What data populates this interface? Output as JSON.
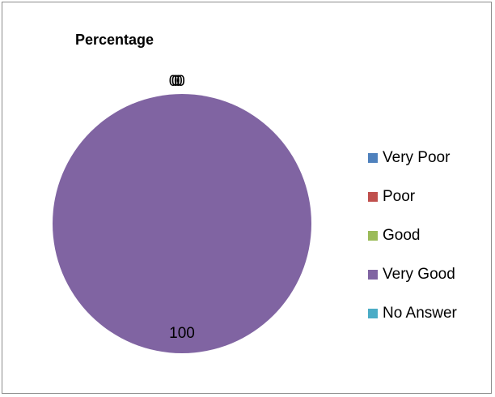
{
  "chart_data": {
    "type": "pie",
    "title": "Percentage",
    "categories": [
      "Very Poor",
      "Poor",
      "Good",
      "Very Good",
      "No Answer"
    ],
    "values": [
      0,
      0,
      0,
      100,
      0
    ],
    "colors": [
      "#4f81bd",
      "#c0504d",
      "#9bbb59",
      "#8064a2",
      "#4bacc6"
    ],
    "data_labels": [
      "0",
      "0",
      "0",
      "100",
      "0"
    ],
    "legend_position": "right"
  }
}
